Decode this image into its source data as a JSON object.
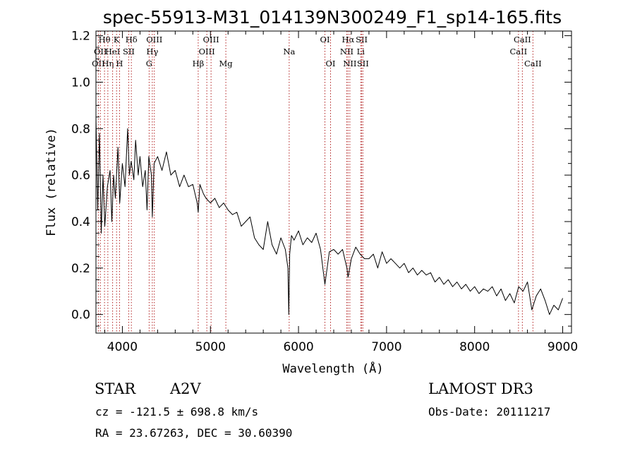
{
  "chart_data": {
    "type": "line",
    "title": "spec-55913-M31_014139N300249_F1_sp14-165.fits",
    "xlabel": "Wavelength (Å)",
    "ylabel": "Flux (relative)",
    "xlim": [
      3700,
      9100
    ],
    "ylim": [
      -0.08,
      1.22
    ],
    "xticks": [
      4000,
      5000,
      6000,
      7000,
      8000,
      9000
    ],
    "yticks": [
      0.0,
      0.2,
      0.4,
      0.6,
      0.8,
      1.0,
      1.2
    ],
    "xtick_labels": [
      "4000",
      "5000",
      "6000",
      "7000",
      "8000",
      "9000"
    ],
    "ytick_labels": [
      "0.0",
      "0.2",
      "0.4",
      "0.6",
      "0.8",
      "1.0",
      "1.2"
    ],
    "grid": false,
    "series": [
      {
        "x": [
          3700,
          3720,
          3740,
          3760,
          3780,
          3800,
          3830,
          3860,
          3880,
          3900,
          3920,
          3950,
          3970,
          4000,
          4030,
          4060,
          4080,
          4100,
          4130,
          4150,
          4180,
          4200,
          4230,
          4260,
          4280,
          4300,
          4330,
          4340,
          4360,
          4400,
          4450,
          4500,
          4550,
          4600,
          4650,
          4700,
          4750,
          4800,
          4850,
          4861,
          4880,
          4920,
          4950,
          5000,
          5050,
          5100,
          5150,
          5200,
          5250,
          5300,
          5350,
          5400,
          5450,
          5500,
          5550,
          5600,
          5650,
          5700,
          5750,
          5800,
          5850,
          5880,
          5890,
          5900,
          5920,
          5950,
          6000,
          6050,
          6100,
          6150,
          6200,
          6250,
          6300,
          6350,
          6400,
          6450,
          6500,
          6550,
          6563,
          6600,
          6650,
          6700,
          6750,
          6800,
          6850,
          6900,
          6950,
          7000,
          7050,
          7100,
          7150,
          7200,
          7250,
          7300,
          7350,
          7400,
          7450,
          7500,
          7550,
          7600,
          7650,
          7700,
          7750,
          7800,
          7850,
          7900,
          7950,
          8000,
          8050,
          8100,
          8150,
          8200,
          8250,
          8300,
          8350,
          8400,
          8450,
          8500,
          8550,
          8600,
          8650,
          8700,
          8750,
          8800,
          8850,
          8900,
          8950,
          9000
        ],
        "values": [
          0.85,
          0.45,
          0.78,
          0.35,
          0.6,
          0.38,
          0.55,
          0.62,
          0.4,
          0.6,
          0.5,
          0.72,
          0.48,
          0.65,
          0.55,
          0.8,
          0.6,
          0.66,
          0.58,
          0.75,
          0.6,
          0.68,
          0.55,
          0.62,
          0.45,
          0.68,
          0.6,
          0.42,
          0.65,
          0.68,
          0.62,
          0.7,
          0.6,
          0.62,
          0.55,
          0.6,
          0.55,
          0.56,
          0.48,
          0.44,
          0.56,
          0.52,
          0.5,
          0.48,
          0.5,
          0.46,
          0.48,
          0.45,
          0.43,
          0.44,
          0.38,
          0.4,
          0.42,
          0.33,
          0.3,
          0.28,
          0.4,
          0.3,
          0.26,
          0.33,
          0.28,
          0.2,
          0.0,
          0.26,
          0.34,
          0.32,
          0.36,
          0.3,
          0.33,
          0.31,
          0.35,
          0.28,
          0.13,
          0.27,
          0.28,
          0.26,
          0.28,
          0.2,
          0.16,
          0.24,
          0.29,
          0.26,
          0.24,
          0.24,
          0.26,
          0.2,
          0.27,
          0.22,
          0.24,
          0.22,
          0.2,
          0.22,
          0.18,
          0.2,
          0.17,
          0.19,
          0.17,
          0.18,
          0.14,
          0.16,
          0.13,
          0.15,
          0.12,
          0.14,
          0.11,
          0.13,
          0.1,
          0.12,
          0.09,
          0.11,
          0.1,
          0.12,
          0.08,
          0.11,
          0.06,
          0.09,
          0.05,
          0.12,
          0.1,
          0.14,
          0.02,
          0.08,
          0.11,
          0.06,
          0.0,
          0.04,
          0.02,
          0.07
        ]
      }
    ],
    "line_markers": [
      {
        "x": 3727,
        "label": "OII",
        "row": 2
      },
      {
        "x": 3750,
        "label": "OII",
        "row": 1
      },
      {
        "x": 3797,
        "label": "Hθ",
        "row": 0
      },
      {
        "x": 3835,
        "label": "Hη",
        "row": 2
      },
      {
        "x": 3889,
        "label": "HeI",
        "row": 1
      },
      {
        "x": 3934,
        "label": "K",
        "row": 0
      },
      {
        "x": 3968,
        "label": "H",
        "row": 2
      },
      {
        "x": 4072,
        "label": "SII",
        "row": 1
      },
      {
        "x": 4102,
        "label": "Hδ",
        "row": 0
      },
      {
        "x": 4304,
        "label": "G",
        "row": 2
      },
      {
        "x": 4340,
        "label": "Hγ",
        "row": 1
      },
      {
        "x": 4363,
        "label": "OIII",
        "row": 0
      },
      {
        "x": 4861,
        "label": "Hβ",
        "row": 2
      },
      {
        "x": 4959,
        "label": "OIII",
        "row": 1
      },
      {
        "x": 5007,
        "label": "OIII",
        "row": 0
      },
      {
        "x": 5175,
        "label": "Mg",
        "row": 2
      },
      {
        "x": 5894,
        "label": "Na",
        "row": 1
      },
      {
        "x": 6300,
        "label": "OI",
        "row": 0
      },
      {
        "x": 6364,
        "label": "OI",
        "row": 2
      },
      {
        "x": 6548,
        "label": "NII",
        "row": 1
      },
      {
        "x": 6563,
        "label": "Hα",
        "row": 0
      },
      {
        "x": 6583,
        "label": "NII",
        "row": 2
      },
      {
        "x": 6707,
        "label": "Li",
        "row": 1
      },
      {
        "x": 6717,
        "label": "SII",
        "row": 0
      },
      {
        "x": 6731,
        "label": "SII",
        "row": 2
      },
      {
        "x": 8498,
        "label": "CaII",
        "row": 1
      },
      {
        "x": 8542,
        "label": "CaII",
        "row": 0
      },
      {
        "x": 8662,
        "label": "CaII",
        "row": 2
      }
    ]
  },
  "info": {
    "object_class": "STAR",
    "subclass": "A2V",
    "survey": "LAMOST DR3",
    "redshift_line": "cz = -121.5 ± 698.8 km/s",
    "obs_date_line": "Obs-Date: 20111217",
    "coords_line": "RA =  23.67263, DEC =  30.60390"
  },
  "colors": {
    "axes": "#000000",
    "spectrum": "#000000",
    "line_marker": "#b22222",
    "background": "#ffffff"
  }
}
